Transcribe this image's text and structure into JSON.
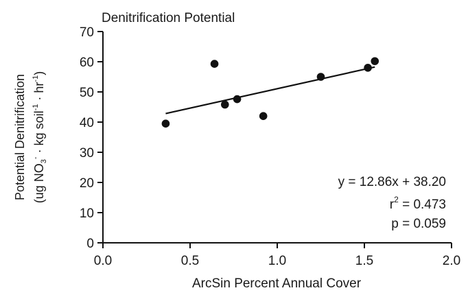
{
  "chart_data": {
    "type": "scatter",
    "title": "Denitrification Potential",
    "xlabel": "ArcSin Percent Annual Cover",
    "ylabel": {
      "line1": "Potential Denitrification",
      "line2_parts": [
        "(ug NO",
        "3",
        "-",
        " · kg soil",
        "-1",
        " · hr",
        "-1",
        ")"
      ]
    },
    "xlim": [
      0.0,
      2.0
    ],
    "ylim": [
      0,
      70
    ],
    "xticks": [
      "0.0",
      "0.5",
      "1.0",
      "1.5",
      "2.0"
    ],
    "yticks": [
      "0",
      "10",
      "20",
      "30",
      "40",
      "50",
      "60",
      "70"
    ],
    "points": [
      {
        "x": 0.36,
        "y": 39.5
      },
      {
        "x": 0.64,
        "y": 59.3
      },
      {
        "x": 0.7,
        "y": 45.8
      },
      {
        "x": 0.77,
        "y": 47.6
      },
      {
        "x": 0.92,
        "y": 42.0
      },
      {
        "x": 1.25,
        "y": 55.0
      },
      {
        "x": 1.52,
        "y": 58.0
      },
      {
        "x": 1.56,
        "y": 60.2
      }
    ],
    "trendline": {
      "slope": 12.86,
      "intercept": 38.2,
      "x_range": [
        0.36,
        1.56
      ]
    },
    "annotations": {
      "equation": "y = 12.86x + 38.20",
      "r2_prefix": "r",
      "r2_sup": "2",
      "r2_value": " = 0.473",
      "p_value": "p = 0.059"
    },
    "grid": false,
    "legend": "none"
  }
}
